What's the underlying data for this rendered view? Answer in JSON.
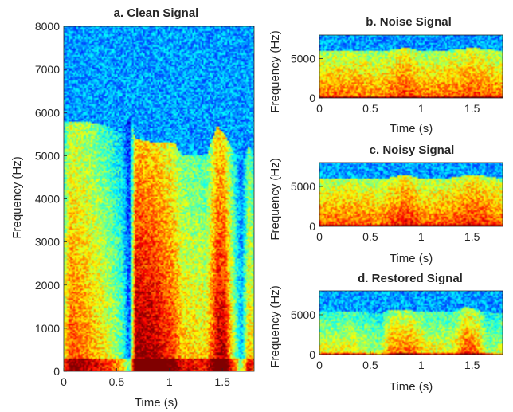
{
  "figure": {
    "background": "#ffffff",
    "axis_color": "#262626"
  },
  "chart_data": [
    {
      "type": "heatmap",
      "title": "a.  Clean Signal",
      "xlabel": "Time (s)",
      "ylabel": "Frequency (Hz)",
      "xlim": [
        0,
        1.8
      ],
      "ylim": [
        0,
        8000
      ],
      "xticks": [
        0,
        0.5,
        1,
        1.5
      ],
      "xtick_labels": [
        "0",
        "0.5",
        "1",
        "1.5"
      ],
      "yticks": [
        0,
        1000,
        2000,
        3000,
        4000,
        5000,
        6000,
        7000,
        8000
      ],
      "ytick_labels": [
        "0",
        "1000",
        "2000",
        "3000",
        "4000",
        "5000",
        "6000",
        "7000",
        "8000"
      ],
      "colormap": "jet",
      "intensity_time_profile": {
        "time_s": [
          0.0,
          0.06,
          0.2,
          0.4,
          0.55,
          0.62,
          0.68,
          0.85,
          1.05,
          1.12,
          1.35,
          1.45,
          1.52,
          1.62,
          1.68,
          1.75,
          1.8
        ],
        "energy": [
          0.55,
          0.78,
          0.72,
          0.6,
          0.45,
          0.2,
          0.95,
          0.92,
          0.78,
          0.66,
          0.62,
          0.9,
          0.9,
          0.5,
          0.3,
          0.68,
          0.55
        ],
        "cutoff_hz": [
          5800,
          5800,
          5800,
          5700,
          5500,
          5900,
          5400,
          5300,
          5300,
          5000,
          5000,
          5700,
          5500,
          5000,
          4800,
          5200,
          5000
        ]
      }
    },
    {
      "type": "heatmap",
      "title": "b.  Noise Signal",
      "xlabel": "Time (s)",
      "ylabel": "Frequency (Hz)",
      "xlim": [
        0,
        1.8
      ],
      "ylim": [
        0,
        8000
      ],
      "xticks": [
        0,
        0.5,
        1,
        1.5
      ],
      "xtick_labels": [
        "0",
        "0.5",
        "1",
        "1.5"
      ],
      "yticks": [
        0,
        5000
      ],
      "ytick_labels": [
        "0",
        "5000"
      ],
      "colormap": "jet",
      "intensity_time_profile": {
        "time_s": [
          0.0,
          0.3,
          0.6,
          0.85,
          1.0,
          1.3,
          1.5,
          1.8
        ],
        "energy": [
          0.72,
          0.74,
          0.7,
          0.8,
          0.72,
          0.74,
          0.78,
          0.72
        ],
        "cutoff_hz": [
          6000,
          6100,
          5900,
          6400,
          6000,
          6100,
          6400,
          6000
        ]
      }
    },
    {
      "type": "heatmap",
      "title": "c.  Noisy Signal",
      "xlabel": "Time (s)",
      "ylabel": "Frequency (Hz)",
      "xlim": [
        0,
        1.8
      ],
      "ylim": [
        0,
        8000
      ],
      "xticks": [
        0,
        0.5,
        1,
        1.5
      ],
      "xtick_labels": [
        "0",
        "0.5",
        "1",
        "1.5"
      ],
      "yticks": [
        0,
        5000
      ],
      "ytick_labels": [
        "0",
        "5000"
      ],
      "colormap": "jet",
      "intensity_time_profile": {
        "time_s": [
          0.0,
          0.3,
          0.6,
          0.85,
          1.0,
          1.3,
          1.5,
          1.8
        ],
        "energy": [
          0.74,
          0.75,
          0.72,
          0.84,
          0.74,
          0.76,
          0.82,
          0.74
        ],
        "cutoff_hz": [
          6000,
          6100,
          5900,
          6500,
          6000,
          6100,
          6500,
          6000
        ]
      }
    },
    {
      "type": "heatmap",
      "title": "d.  Restored Signal",
      "xlabel": "Time (s)",
      "ylabel": "Frequency (Hz)",
      "xlim": [
        0,
        1.8
      ],
      "ylim": [
        0,
        8000
      ],
      "xticks": [
        0,
        0.5,
        1,
        1.5
      ],
      "xtick_labels": [
        "0",
        "0.5",
        "1",
        "1.5"
      ],
      "yticks": [
        0,
        5000
      ],
      "ytick_labels": [
        "0",
        "5000"
      ],
      "colormap": "jet",
      "intensity_time_profile": {
        "time_s": [
          0.0,
          0.3,
          0.6,
          0.7,
          0.9,
          1.05,
          1.3,
          1.45,
          1.55,
          1.65,
          1.8
        ],
        "energy": [
          0.58,
          0.6,
          0.5,
          0.72,
          0.74,
          0.6,
          0.58,
          0.78,
          0.72,
          0.5,
          0.55
        ],
        "cutoff_hz": [
          5300,
          5400,
          5200,
          5600,
          5500,
          5300,
          5300,
          6000,
          5600,
          5200,
          5300
        ]
      }
    }
  ]
}
